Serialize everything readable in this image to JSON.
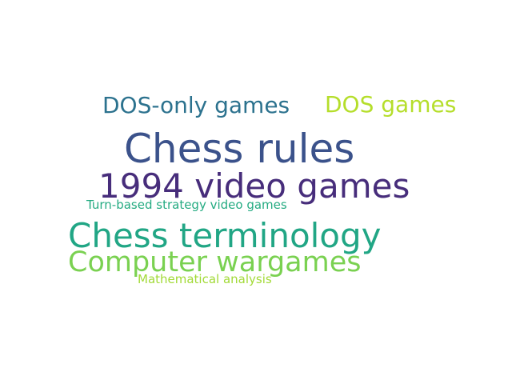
{
  "words": [
    {
      "text": "Chess rules",
      "color": "#3b528b"
    },
    {
      "text": "1994 video games",
      "color": "#472d7b"
    },
    {
      "text": "Chess terminology",
      "color": "#21a685"
    },
    {
      "text": "Computer wargames",
      "color": "#7ad151"
    },
    {
      "text": "DOS-only games",
      "color": "#2c728e"
    },
    {
      "text": "DOS games",
      "color": "#b5de2b"
    },
    {
      "text": "Turn-based strategy video games",
      "color": "#25ab82"
    },
    {
      "text": "Mathematical analysis",
      "color": "#a2da37"
    }
  ]
}
